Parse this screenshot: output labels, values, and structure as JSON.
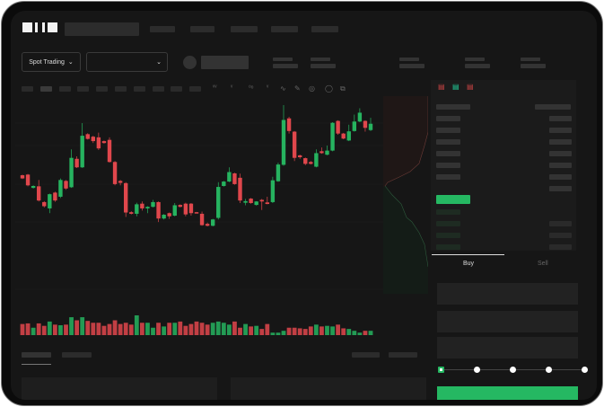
{
  "header": {
    "logo": "OKX",
    "nav_count": 5
  },
  "toolbar": {
    "market_selector": "Spot Trading",
    "pair_selector": ""
  },
  "trade": {
    "buy_tab": "Buy",
    "sell_tab": "Sell",
    "leverage_steps": 5,
    "selected_step": 0
  },
  "colors": {
    "up": "#26b35f",
    "down": "#e0474c",
    "background": "#161616",
    "accent": "#25b862"
  },
  "icons": [
    "chevron-down-icon",
    "chart-line-icon",
    "pencil-icon",
    "magnet-icon",
    "eye-icon",
    "fullscreen-icon",
    "orderbook-both-icon",
    "orderbook-bids-icon",
    "orderbook-asks-icon"
  ],
  "chart_data": {
    "type": "candlestick",
    "ohlc": [
      [
        200,
        190,
        202,
        188
      ],
      [
        202,
        168,
        204,
        165
      ],
      [
        160,
        166,
        168,
        158
      ],
      [
        165,
        120,
        185,
        117
      ],
      [
        115,
        102,
        118,
        98
      ],
      [
        95,
        140,
        142,
        80
      ],
      [
        145,
        120,
        148,
        116
      ],
      [
        132,
        185,
        190,
        128
      ],
      [
        182,
        158,
        185,
        154
      ],
      [
        162,
        255,
        282,
        160
      ],
      [
        252,
        225,
        260,
        223
      ],
      [
        225,
        325,
        365,
        223
      ],
      [
        330,
        315,
        333,
        313
      ],
      [
        322,
        308,
        325,
        302
      ],
      [
        320,
        285,
        335,
        280
      ],
      [
        308,
        302,
        310,
        300
      ],
      [
        312,
        242,
        320,
        240
      ],
      [
        242,
        172,
        245,
        168
      ],
      [
        182,
        176,
        185,
        168
      ],
      [
        175,
        82,
        178,
        68
      ],
      [
        83,
        78,
        86,
        76
      ],
      [
        78,
        108,
        113,
        70
      ],
      [
        110,
        95,
        117,
        88
      ],
      [
        95,
        100,
        102,
        80
      ],
      [
        100,
        115,
        122,
        98
      ],
      [
        115,
        63,
        117,
        52
      ],
      [
        63,
        75,
        77,
        60
      ],
      [
        80,
        70,
        82,
        62
      ],
      [
        72,
        105,
        112,
        70
      ],
      [
        106,
        100,
        108,
        98
      ],
      [
        110,
        76,
        113,
        70
      ],
      [
        110,
        80,
        112,
        72
      ],
      [
        83,
        80,
        84,
        79
      ],
      [
        78,
        42,
        85,
        40
      ],
      [
        46,
        40,
        50,
        38
      ],
      [
        40,
        60,
        62,
        38
      ],
      [
        65,
        163,
        178,
        60
      ],
      [
        166,
        180,
        182,
        164
      ],
      [
        180,
        210,
        225,
        178
      ],
      [
        206,
        172,
        208,
        170
      ],
      [
        192,
        120,
        205,
        112
      ],
      [
        113,
        118,
        125,
        105
      ],
      [
        126,
        112,
        128,
        110
      ],
      [
        106,
        117,
        118,
        104
      ],
      [
        122,
        117,
        125,
        90
      ],
      [
        114,
        109,
        132,
        108
      ],
      [
        115,
        184,
        195,
        112
      ],
      [
        181,
        234,
        240,
        179
      ],
      [
        233,
        375,
        422,
        230
      ],
      [
        380,
        340,
        385,
        332
      ],
      [
        338,
        255,
        340,
        245
      ],
      [
        263,
        257,
        265,
        252
      ],
      [
        254,
        236,
        256,
        232
      ],
      [
        242,
        236,
        245,
        234
      ],
      [
        227,
        270,
        282,
        225
      ],
      [
        276,
        270,
        288,
        268
      ],
      [
        265,
        278,
        294,
        263
      ],
      [
        278,
        366,
        368,
        276
      ],
      [
        372,
        332,
        374,
        328
      ],
      [
        332,
        316,
        334,
        314
      ],
      [
        310,
        339,
        360,
        308
      ],
      [
        340,
        370,
        392,
        338
      ],
      [
        370,
        398,
        412,
        368
      ],
      [
        372,
        350,
        374,
        338
      ],
      [
        343,
        363,
        382,
        340
      ]
    ],
    "volume": [
      36,
      38,
      24,
      38,
      30,
      44,
      34,
      32,
      34,
      58,
      48,
      58,
      46,
      40,
      40,
      30,
      36,
      48,
      36,
      40,
      34,
      64,
      40,
      40,
      24,
      40,
      28,
      40,
      40,
      44,
      30,
      36,
      44,
      40,
      34,
      40,
      44,
      40,
      34,
      44,
      24,
      36,
      28,
      30,
      20,
      36,
      8,
      8,
      14,
      24,
      24,
      22,
      20,
      28,
      34,
      28,
      30,
      28,
      34,
      22,
      20,
      14,
      8,
      14,
      14
    ]
  }
}
